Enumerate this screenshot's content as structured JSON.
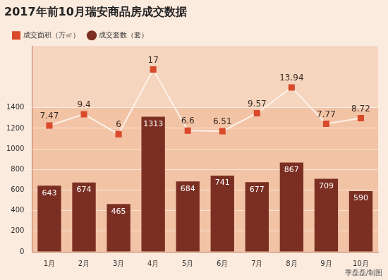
{
  "chart_data": {
    "type": "bar",
    "title": "2017年前10月瑞安商品房成交数据",
    "categories": [
      "1月",
      "2月",
      "3月",
      "4月",
      "5月",
      "6月",
      "7月",
      "8月",
      "9月",
      "10月"
    ],
    "series": [
      {
        "name": "成交套数（套）",
        "type": "bar",
        "color": "#7b2f23",
        "values": [
          643,
          674,
          465,
          1313,
          684,
          741,
          677,
          867,
          709,
          590
        ]
      },
      {
        "name": "成交面积（万㎡）",
        "type": "line",
        "axis": "y2",
        "color": "#d94a2b",
        "marker": "square",
        "line_style": "solid",
        "values": [
          7.47,
          9.4,
          6,
          17,
          6.6,
          6.51,
          9.57,
          13.94,
          7.77,
          8.72
        ]
      }
    ],
    "ylim": [
      0,
      2000
    ],
    "yticks": [
      0,
      200,
      400,
      600,
      800,
      1000,
      1200,
      1400
    ],
    "y2lim": [
      -14,
      21
    ],
    "grid": true,
    "legend": "top-left",
    "data_labels": true,
    "annotations": [
      "季磊磊/制图"
    ]
  }
}
